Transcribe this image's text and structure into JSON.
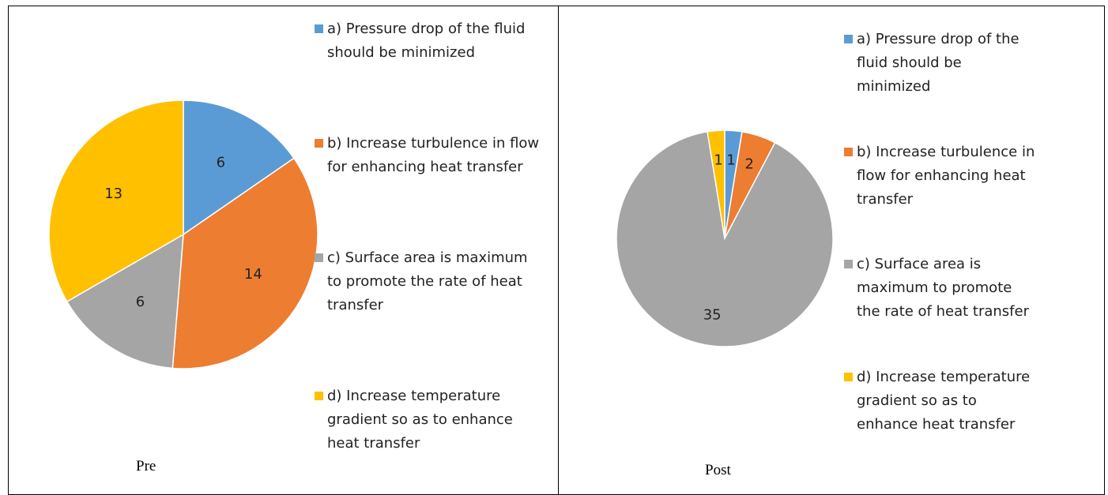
{
  "chart_data": [
    {
      "type": "pie",
      "caption": "Pre",
      "categories": [
        "a) Pressure drop of the fluid should be minimized",
        "b) Increase turbulence in flow for enhancing heat transfer",
        "c) Surface area is maximum to promote the rate of heat transfer",
        "d) Increase temperature gradient so as to enhance heat transfer"
      ],
      "values": [
        6,
        14,
        6,
        13
      ],
      "colors": [
        "#5b9bd5",
        "#ed7d31",
        "#a5a5a5",
        "#ffc000"
      ]
    },
    {
      "type": "pie",
      "caption": "Post",
      "categories": [
        "a) Pressure drop of the fluid should be minimized",
        "b) Increase turbulence in flow for enhancing heat transfer",
        "c) Surface area is maximum to promote the rate of heat transfer",
        "d) Increase temperature gradient so as to enhance heat transfer"
      ],
      "values": [
        1,
        2,
        35,
        1
      ],
      "colors": [
        "#5b9bd5",
        "#ed7d31",
        "#a5a5a5",
        "#ffc000"
      ]
    }
  ]
}
